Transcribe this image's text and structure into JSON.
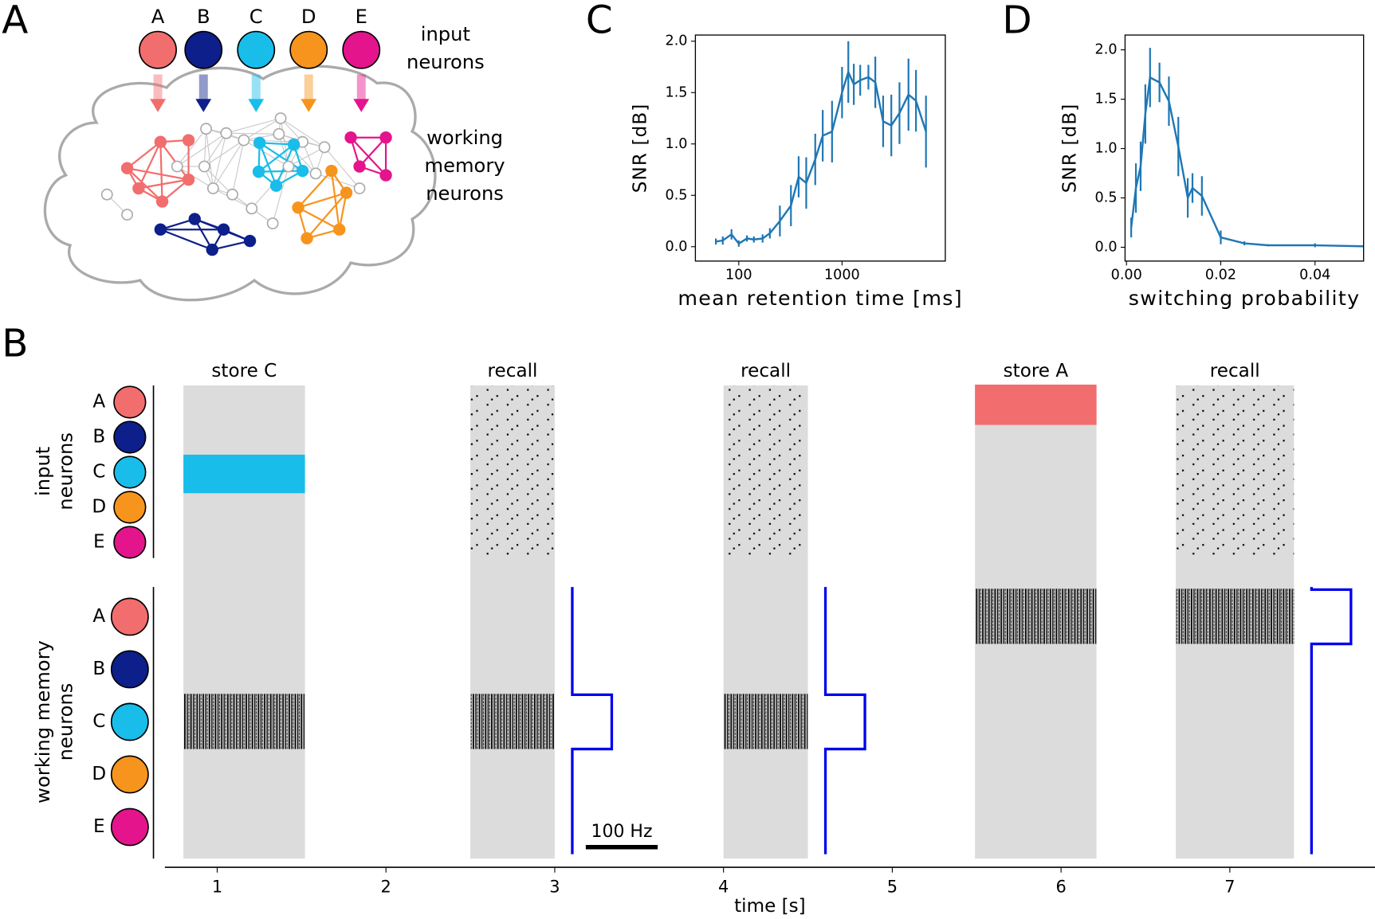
{
  "panel_labels": [
    "A",
    "B",
    "C",
    "D"
  ],
  "panel_a": {
    "input_labels": [
      "A",
      "B",
      "C",
      "D",
      "E"
    ],
    "input_caption": [
      "input",
      "neurons"
    ],
    "memory_caption": [
      "working",
      "memory",
      "neurons"
    ]
  },
  "panel_b": {
    "row_labels": [
      "A",
      "B",
      "C",
      "D",
      "E"
    ],
    "row_colors": [
      "#f26d6d",
      "#0d1f8a",
      "#19bdea",
      "#f7941d",
      "#e4148c"
    ],
    "input_axis_label": [
      "input",
      "neurons"
    ],
    "memory_axis_label": [
      "working memory",
      "neurons"
    ],
    "windows": [
      {
        "label": "store C",
        "start": 0.8,
        "end": 1.52,
        "active_row": 2
      },
      {
        "label": "recall",
        "start": 2.5,
        "end": 3.0,
        "active_row": 2
      },
      {
        "label": "recall",
        "start": 4.0,
        "end": 4.5,
        "active_row": 2
      },
      {
        "label": "store A",
        "start": 5.49,
        "end": 6.21,
        "active_row": 0
      },
      {
        "label": "recall",
        "start": 6.68,
        "end": 7.38,
        "active_row": 0
      }
    ],
    "scale_bar": "100 Hz",
    "xlabel": "time [s]",
    "xlim": [
      0.69,
      7.86
    ],
    "xticks": [
      1,
      2,
      3,
      4,
      5,
      6,
      7
    ]
  },
  "chart_data": [
    {
      "type": "line",
      "xlabel": "mean retention time [ms]",
      "ylabel": "SNR [dB]",
      "log_x": true,
      "xlim": [
        38,
        10000
      ],
      "ylim": [
        -0.14,
        2.06
      ],
      "xticks": [
        100,
        1000
      ],
      "yticks": [
        {
          "value": 0,
          "label": "0.0"
        },
        {
          "value": 0.5,
          "label": "0.5"
        },
        {
          "value": 1,
          "label": "1.0"
        },
        {
          "value": 1.5,
          "label": "1.5"
        },
        {
          "value": 2,
          "label": "2.0"
        }
      ],
      "x": [
        60,
        70,
        85,
        100,
        120,
        140,
        170,
        200,
        250,
        320,
        380,
        450,
        550,
        650,
        800,
        1000,
        1150,
        1300,
        1500,
        1800,
        2100,
        2500,
        3000,
        3600,
        4400,
        5200,
        6500
      ],
      "series": [
        {
          "color": "#1f77b4",
          "values": [
            0.05,
            0.06,
            0.12,
            0.03,
            0.08,
            0.07,
            0.08,
            0.13,
            0.25,
            0.4,
            0.68,
            0.62,
            0.85,
            1.08,
            1.12,
            1.5,
            1.7,
            1.58,
            1.62,
            1.65,
            1.6,
            1.22,
            1.18,
            1.3,
            1.48,
            1.42,
            1.12
          ],
          "errors": [
            0.03,
            0.04,
            0.05,
            0.03,
            0.03,
            0.03,
            0.04,
            0.05,
            0.15,
            0.2,
            0.2,
            0.25,
            0.25,
            0.25,
            0.3,
            0.25,
            0.3,
            0.2,
            0.15,
            0.12,
            0.25,
            0.25,
            0.3,
            0.3,
            0.35,
            0.3,
            0.35
          ]
        }
      ]
    },
    {
      "type": "line",
      "xlabel": "switching probability",
      "ylabel": "SNR [dB]",
      "log_x": false,
      "xlim": [
        -0.0003,
        0.0503
      ],
      "ylim": [
        -0.14,
        2.15
      ],
      "xticks": [
        {
          "value": 0,
          "label": "0.00"
        },
        {
          "value": 0.02,
          "label": "0.02"
        },
        {
          "value": 0.04,
          "label": "0.04"
        }
      ],
      "yticks": [
        {
          "value": 0,
          "label": "0.0"
        },
        {
          "value": 0.5,
          "label": "0.5"
        },
        {
          "value": 1,
          "label": "1.0"
        },
        {
          "value": 1.5,
          "label": "1.5"
        },
        {
          "value": 2,
          "label": "2.0"
        }
      ],
      "x": [
        0.001,
        0.002,
        0.003,
        0.004,
        0.005,
        0.007,
        0.009,
        0.011,
        0.013,
        0.014,
        0.016,
        0.02,
        0.025,
        0.03,
        0.04,
        0.05
      ],
      "series": [
        {
          "color": "#1f77b4",
          "values": [
            0.2,
            0.6,
            0.82,
            1.35,
            1.72,
            1.67,
            1.48,
            1.02,
            0.5,
            0.6,
            0.52,
            0.1,
            0.04,
            0.02,
            0.02,
            0.01
          ],
          "errors": [
            0.1,
            0.25,
            0.25,
            0.3,
            0.3,
            0.2,
            0.25,
            0.3,
            0.2,
            0.15,
            0.2,
            0.07,
            0.02,
            0.01,
            0.02,
            0.01
          ]
        }
      ]
    }
  ]
}
